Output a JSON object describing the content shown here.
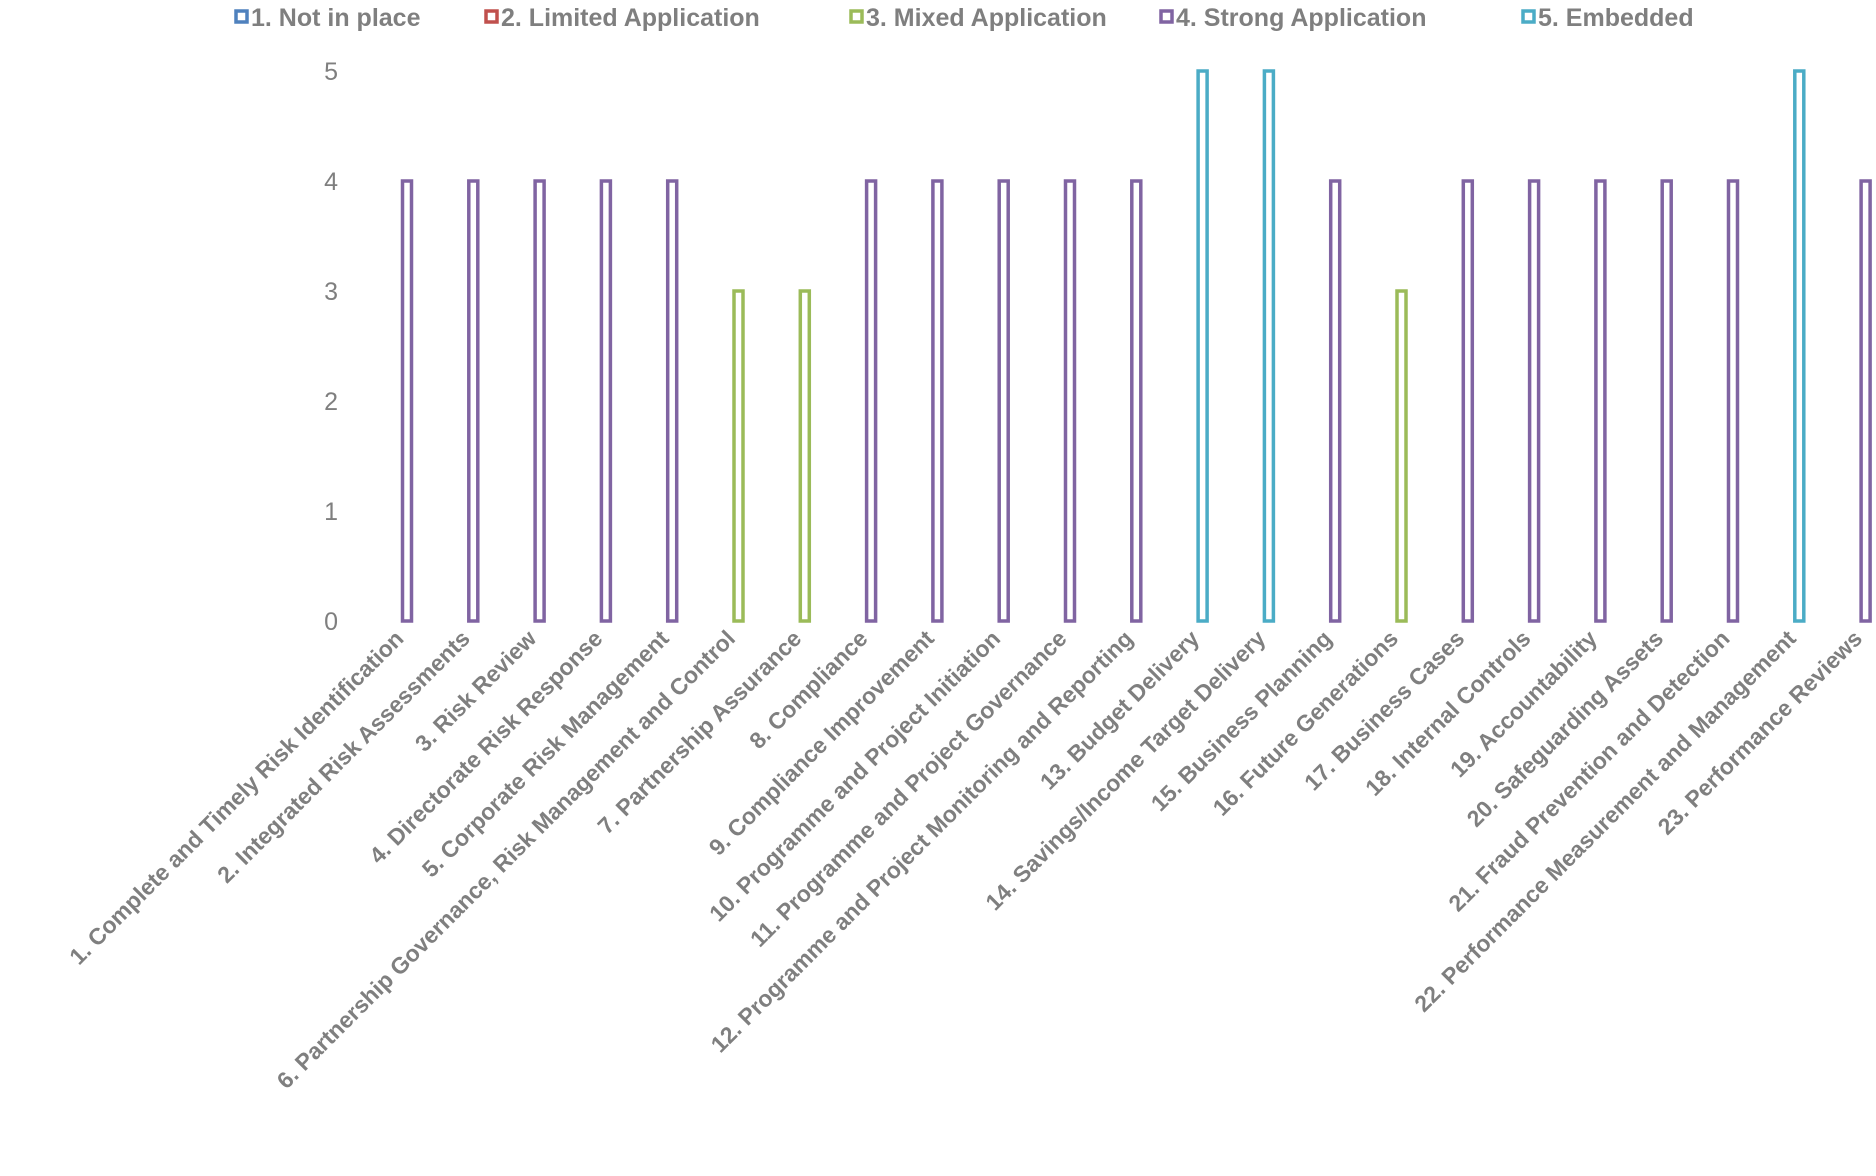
{
  "chart_data": {
    "type": "bar",
    "legend_position": "top",
    "grid": false,
    "ylim": [
      0,
      5
    ],
    "yticks": [
      "0",
      "1",
      "2",
      "3",
      "4",
      "5"
    ],
    "legend": [
      {
        "label": "1. Not in place",
        "color": "#4f81bd"
      },
      {
        "label": "2. Limited Application",
        "color": "#c0504d"
      },
      {
        "label": "3. Mixed Application",
        "color": "#9bbb59"
      },
      {
        "label": "4. Strong Application",
        "color": "#8064a2"
      },
      {
        "label": "5. Embedded",
        "color": "#4bacc6"
      }
    ],
    "categories": [
      "1. Complete and Timely Risk Identification",
      "2. Integrated Risk Assessments",
      "3. Risk Review",
      "4. Directorate Risk Response",
      "5. Corporate Risk Management",
      "6. Partnership Governance, Risk Management and Control",
      "7. Partnership Assurance",
      "8. Compliance",
      "9. Compliance Improvement",
      "10. Programme and Project Initiation",
      "11. Programme and Project Governance",
      "12. Programme and Project Monitoring and Reporting",
      "13. Budget Delivery",
      "14. Savings/Income Target Delivery",
      "15. Business Planning",
      "16. Future Generations",
      "17. Business Cases",
      "18. Internal Controls",
      "19. Accountability",
      "20. Safeguarding Assets",
      "21. Fraud Prevention and Detection",
      "22. Performance Measurement and Management",
      "23. Performance Reviews"
    ],
    "values": [
      4,
      4,
      4,
      4,
      4,
      3,
      3,
      4,
      4,
      4,
      4,
      4,
      5,
      5,
      4,
      3,
      4,
      4,
      4,
      4,
      4,
      5,
      4
    ],
    "series_index": [
      3,
      3,
      3,
      3,
      3,
      2,
      2,
      3,
      3,
      3,
      3,
      3,
      4,
      4,
      3,
      2,
      3,
      3,
      3,
      3,
      3,
      4,
      3
    ]
  }
}
